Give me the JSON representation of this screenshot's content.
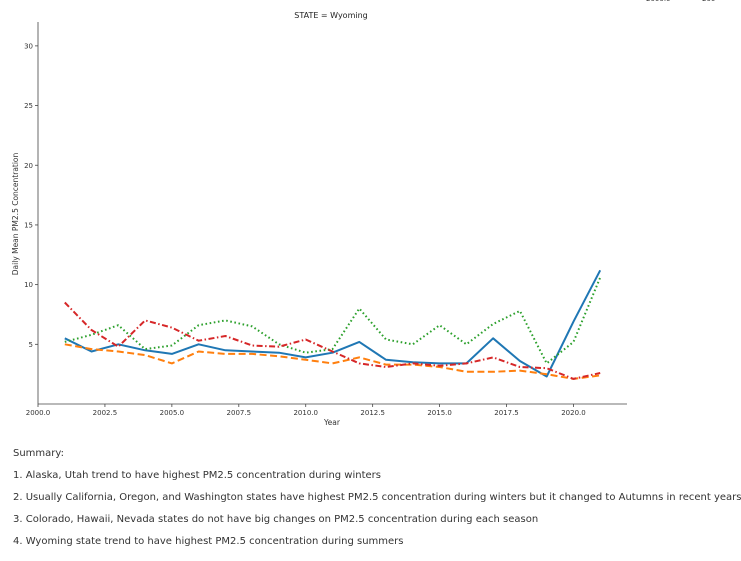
{
  "chart_data": {
    "type": "line",
    "title": "STATE = Wyoming",
    "xlabel": "Year",
    "ylabel": "Daily Mean PM2.5 Concentration",
    "xlim": [
      2000,
      2022
    ],
    "ylim": [
      0,
      32
    ],
    "x_ticks": [
      2000,
      2002.5,
      2005,
      2007.5,
      2010,
      2012.5,
      2015,
      2017.5,
      2020
    ],
    "x_tick_labels": [
      "2000.0",
      "2002.5",
      "2005.0",
      "2007.5",
      "2010.0",
      "2012.5",
      "2015.0",
      "2017.5",
      "2020.0"
    ],
    "y_ticks": [
      5,
      10,
      15,
      20,
      25,
      30
    ],
    "y_tick_labels": [
      "5",
      "10",
      "15",
      "20",
      "25",
      "30"
    ],
    "clipped_top_right_labels": [
      "2000.0",
      "200"
    ],
    "x": [
      2001,
      2002,
      2003,
      2004,
      2005,
      2006,
      2007,
      2008,
      2009,
      2010,
      2011,
      2012,
      2013,
      2014,
      2015,
      2016,
      2017,
      2018,
      2019,
      2020,
      2021
    ],
    "series": [
      {
        "color": "#1f77b4",
        "dash": "solid",
        "values": [
          5.5,
          4.4,
          5.0,
          4.5,
          4.2,
          5.0,
          4.5,
          4.4,
          4.3,
          3.9,
          4.3,
          5.2,
          3.7,
          3.5,
          3.4,
          3.4,
          5.5,
          3.6,
          2.3,
          6.9,
          11.2
        ]
      },
      {
        "color": "#ff7f0e",
        "dash": "long-dash",
        "values": [
          5.0,
          4.6,
          4.4,
          4.1,
          3.4,
          4.4,
          4.2,
          4.2,
          4.0,
          3.7,
          3.4,
          3.9,
          3.3,
          3.3,
          3.1,
          2.7,
          2.7,
          2.8,
          2.5,
          2.1,
          2.4
        ]
      },
      {
        "color": "#2ca02c",
        "dash": "dotted",
        "values": [
          5.2,
          5.8,
          6.6,
          4.6,
          4.9,
          6.6,
          7.0,
          6.5,
          5.0,
          4.3,
          4.6,
          8.0,
          5.4,
          5.0,
          6.6,
          5.0,
          6.7,
          7.8,
          3.4,
          5.2,
          10.6
        ]
      },
      {
        "color": "#d62728",
        "dash": "dash-dot",
        "values": [
          8.5,
          6.2,
          4.8,
          7.0,
          6.4,
          5.3,
          5.7,
          4.9,
          4.8,
          5.4,
          4.4,
          3.4,
          3.1,
          3.4,
          3.2,
          3.4,
          3.9,
          3.1,
          3.0,
          2.1,
          2.6
        ]
      }
    ]
  },
  "summary": {
    "heading": "Summary:",
    "items": [
      "1. Alaska, Utah trend to have highest PM2.5 concentration during winters",
      "2. Usually California, Oregon, and Washington states have highest PM2.5 concentration during winters but it changed to Autumns in recent years",
      "3. Colorado, Hawaii, Nevada states do not have big changes on PM2.5 concentration during each season",
      "4. Wyoming state trend to have highest PM2.5 concentration during summers"
    ]
  }
}
